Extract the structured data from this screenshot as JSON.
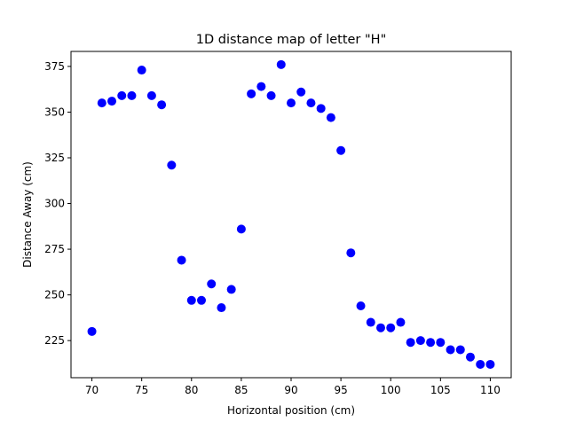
{
  "chart_data": {
    "type": "scatter",
    "title": "1D distance map of letter \"H\"",
    "xlabel": "Horizontal position (cm)",
    "ylabel": "Distance Away (cm)",
    "xlim": [
      67.9,
      112.1
    ],
    "ylim": [
      204.7,
      383.2
    ],
    "xticks": [
      70,
      75,
      80,
      85,
      90,
      95,
      100,
      105,
      110
    ],
    "yticks": [
      225,
      250,
      275,
      300,
      325,
      350,
      375
    ],
    "grid": false,
    "legend": "none",
    "marker_color": "#0000ff",
    "series": [
      {
        "x": [
          70,
          71,
          72,
          73,
          74,
          75,
          76,
          77,
          78,
          79,
          80,
          81,
          82,
          83,
          84,
          85,
          86,
          87,
          88,
          89,
          90,
          91,
          92,
          93,
          94,
          95,
          96,
          97,
          98,
          99,
          100,
          101,
          102,
          103,
          104,
          105,
          106,
          107,
          108,
          109,
          110
        ],
        "y": [
          230,
          355,
          356,
          359,
          359,
          373,
          359,
          354,
          321,
          269,
          247,
          247,
          256,
          243,
          253,
          286,
          360,
          364,
          359,
          376,
          355,
          361,
          355,
          352,
          347,
          329,
          273,
          244,
          235,
          232,
          232,
          235,
          224,
          225,
          224,
          224,
          220,
          220,
          216,
          212,
          212
        ]
      }
    ]
  }
}
